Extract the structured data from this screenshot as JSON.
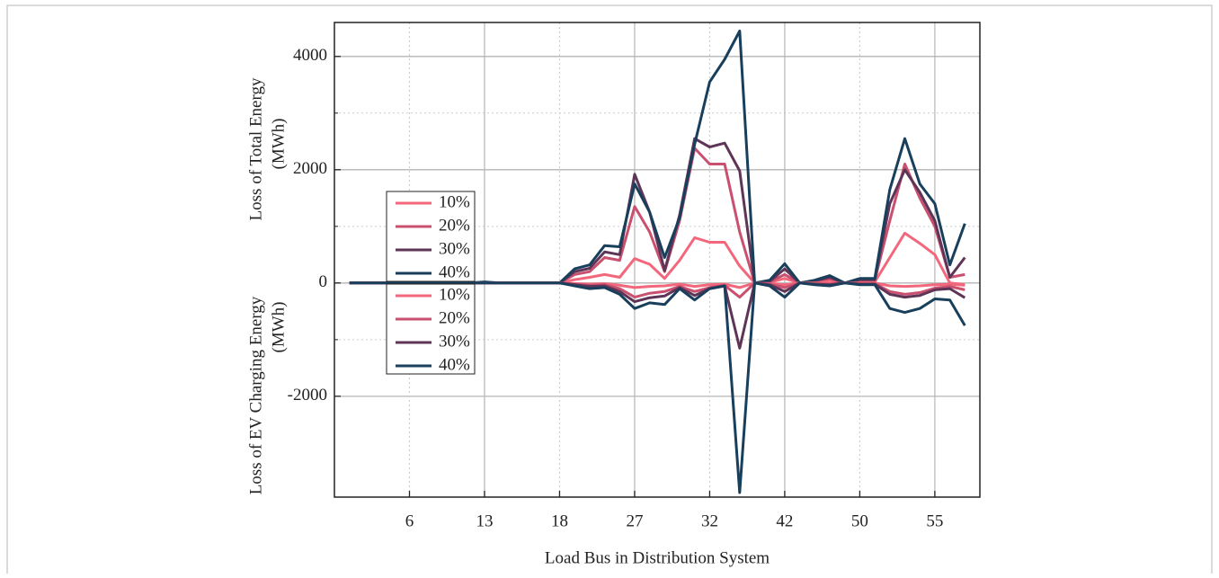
{
  "chart_data": {
    "type": "line",
    "x_label": "Load Bus in Distribution System",
    "y_label_top": [
      "Loss of Total Energy",
      "(MWh)"
    ],
    "y_label_bottom": [
      "Loss of EV Charging Energy",
      "(MWh)"
    ],
    "categories": [
      null,
      null,
      null,
      null,
      "6",
      null,
      null,
      null,
      null,
      "13",
      null,
      null,
      null,
      null,
      "18",
      null,
      null,
      null,
      null,
      "27",
      null,
      null,
      null,
      null,
      "32",
      null,
      null,
      null,
      null,
      "42",
      null,
      null,
      null,
      null,
      "50",
      null,
      null,
      null,
      null,
      "55",
      null,
      null
    ],
    "ylim": [
      -3780,
      4600
    ],
    "yticks": [
      -2000,
      0,
      2000,
      4000
    ],
    "grid": true,
    "series": [
      {
        "name": "10%",
        "color": "#f2677b",
        "values": [
          0,
          0,
          0,
          0,
          0,
          0,
          0,
          0,
          0,
          0,
          0,
          0,
          0,
          0,
          0,
          60,
          100,
          150,
          100,
          430,
          330,
          80,
          400,
          800,
          720,
          720,
          300,
          0,
          10,
          80,
          0,
          10,
          40,
          0,
          20,
          20,
          450,
          880,
          700,
          500,
          0,
          -30
        ]
      },
      {
        "name": "20%",
        "color": "#c9506f",
        "values": [
          0,
          0,
          0,
          0,
          0,
          0,
          0,
          0,
          0,
          0,
          0,
          0,
          0,
          0,
          0,
          150,
          200,
          450,
          400,
          1350,
          900,
          200,
          1100,
          2380,
          2100,
          2100,
          900,
          0,
          20,
          150,
          0,
          30,
          80,
          0,
          50,
          50,
          1100,
          2100,
          1500,
          1000,
          100,
          150
        ]
      },
      {
        "name": "30%",
        "color": "#5e3556",
        "values": [
          0,
          0,
          0,
          0,
          0,
          0,
          0,
          0,
          0,
          0,
          0,
          0,
          0,
          0,
          0,
          200,
          260,
          550,
          500,
          1920,
          1250,
          220,
          1200,
          2550,
          2400,
          2470,
          1980,
          0,
          30,
          250,
          0,
          40,
          100,
          0,
          60,
          60,
          1400,
          2000,
          1600,
          1100,
          100,
          450
        ]
      },
      {
        "name": "40%",
        "color": "#183f5c",
        "values": [
          0,
          0,
          0,
          0,
          0,
          0,
          0,
          0,
          0,
          20,
          0,
          0,
          0,
          0,
          0,
          250,
          320,
          660,
          640,
          1750,
          1250,
          450,
          1150,
          2450,
          3550,
          3950,
          4450,
          0,
          50,
          340,
          0,
          50,
          130,
          0,
          80,
          80,
          1650,
          2550,
          1750,
          1400,
          320,
          1050
        ]
      },
      {
        "name": "10%",
        "color": "#f2677b",
        "values": [
          0,
          0,
          0,
          0,
          0,
          0,
          0,
          0,
          0,
          0,
          0,
          0,
          0,
          0,
          0,
          -10,
          -20,
          -10,
          -40,
          -80,
          -60,
          -50,
          -20,
          -60,
          -30,
          -20,
          -80,
          0,
          -10,
          -30,
          0,
          0,
          -10,
          0,
          0,
          0,
          -50,
          -60,
          -50,
          -30,
          -20,
          -40
        ]
      },
      {
        "name": "20%",
        "color": "#c9506f",
        "values": [
          0,
          0,
          0,
          0,
          0,
          0,
          0,
          0,
          0,
          0,
          0,
          0,
          0,
          0,
          0,
          -20,
          -40,
          -30,
          -100,
          -250,
          -180,
          -150,
          -60,
          -150,
          -80,
          -40,
          -250,
          0,
          -20,
          -80,
          0,
          -10,
          -20,
          0,
          -10,
          -10,
          -150,
          -200,
          -170,
          -90,
          -60,
          -120
        ]
      },
      {
        "name": "30%",
        "color": "#5e3556",
        "values": [
          0,
          0,
          0,
          0,
          0,
          0,
          0,
          0,
          0,
          0,
          0,
          0,
          0,
          0,
          0,
          -30,
          -60,
          -50,
          -150,
          -330,
          -260,
          -230,
          -80,
          -220,
          -100,
          -50,
          -1150,
          0,
          -30,
          -150,
          0,
          -20,
          -30,
          0,
          -20,
          -20,
          -200,
          -250,
          -220,
          -120,
          -100,
          -260
        ]
      },
      {
        "name": "40%",
        "color": "#183f5c",
        "values": [
          0,
          0,
          0,
          0,
          0,
          0,
          0,
          0,
          0,
          0,
          0,
          0,
          0,
          0,
          0,
          -50,
          -100,
          -80,
          -200,
          -450,
          -350,
          -380,
          -100,
          -300,
          -100,
          -50,
          -3700,
          0,
          -50,
          -250,
          0,
          -30,
          -50,
          0,
          -30,
          -30,
          -450,
          -520,
          -450,
          -280,
          -300,
          -750
        ]
      }
    ]
  }
}
